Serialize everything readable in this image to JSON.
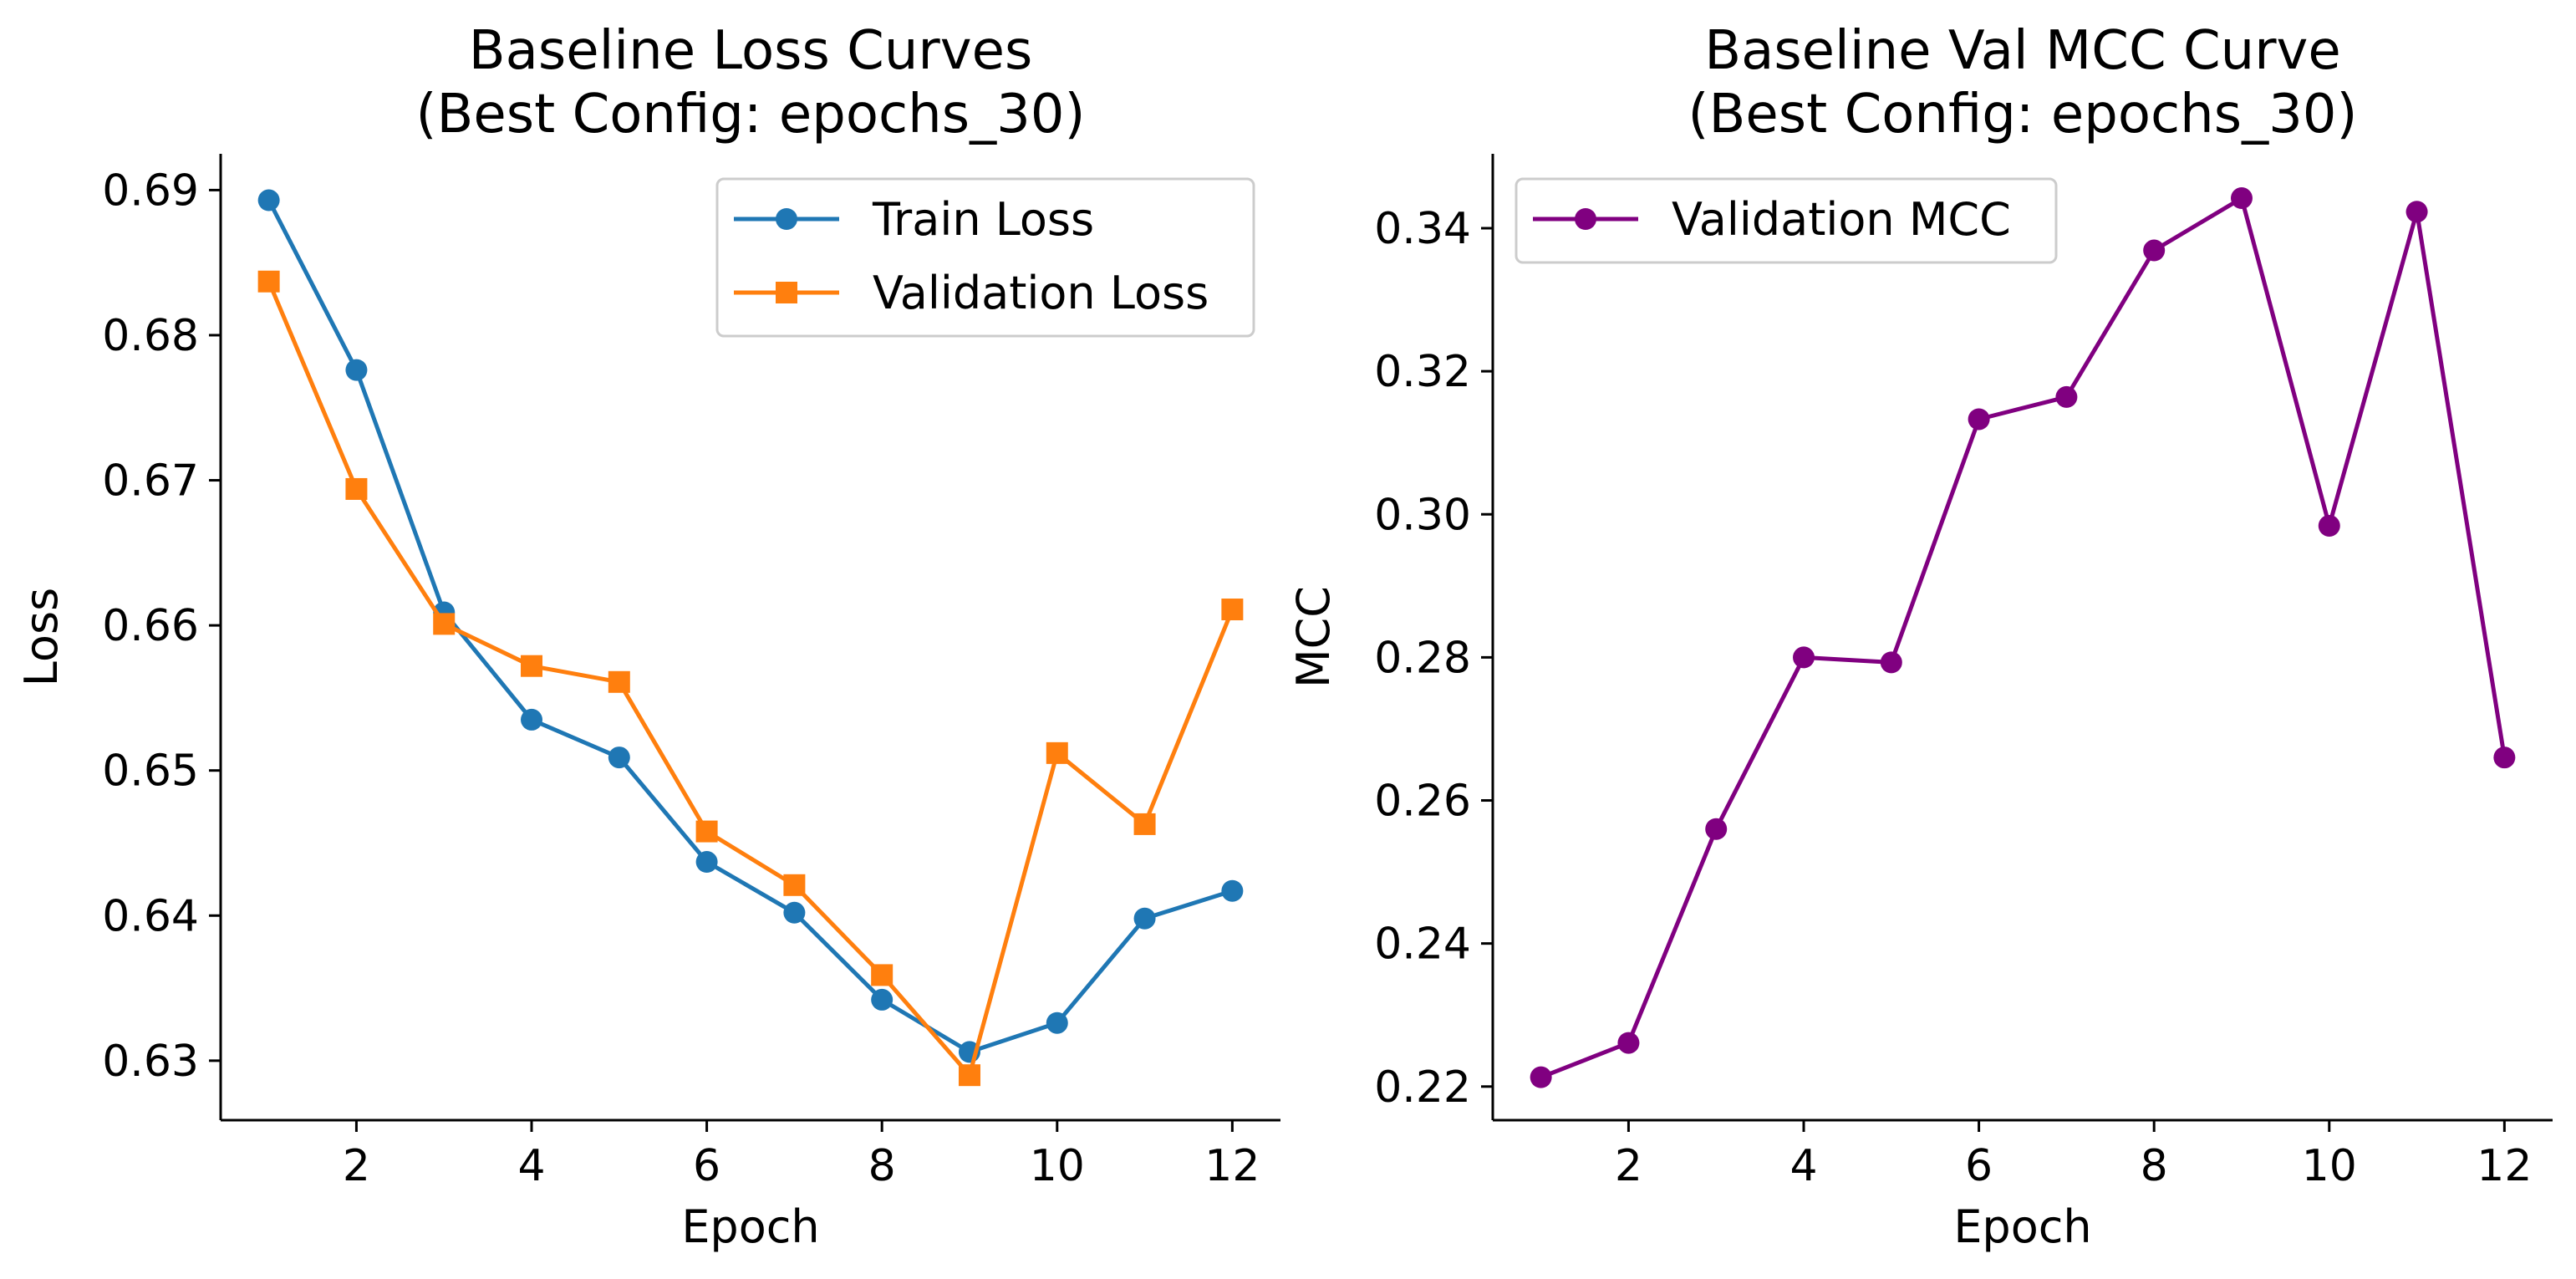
{
  "chart_data": [
    {
      "type": "line",
      "title": [
        "Baseline Loss Curves",
        "(Best Config: epochs_30)"
      ],
      "xlabel": "Epoch",
      "ylabel": "Loss",
      "xlim": [
        0.45,
        12.55
      ],
      "ylim": [
        0.6259,
        0.6925
      ],
      "xticks": [
        2,
        4,
        6,
        8,
        10,
        12
      ],
      "yticks": [
        0.63,
        0.64,
        0.65,
        0.66,
        0.67,
        0.68,
        0.69
      ],
      "ytick_labels": [
        "0.63",
        "0.64",
        "0.65",
        "0.66",
        "0.67",
        "0.68",
        "0.69"
      ],
      "legend_position": "top-right",
      "x": [
        1,
        2,
        3,
        4,
        5,
        6,
        7,
        8,
        9,
        10,
        11,
        12
      ],
      "series": [
        {
          "name": "Train Loss",
          "color": "#1f77b4",
          "marker": "circle",
          "values": [
            0.6893,
            0.6776,
            0.6609,
            0.6535,
            0.6509,
            0.6437,
            0.6402,
            0.6342,
            0.6306,
            0.6326,
            0.6398,
            0.6417
          ]
        },
        {
          "name": "Validation Loss",
          "color": "#ff7f0e",
          "marker": "square",
          "values": [
            0.6837,
            0.6694,
            0.6601,
            0.6572,
            0.6561,
            0.6458,
            0.6421,
            0.6359,
            0.629,
            0.6512,
            0.6463,
            0.6611
          ]
        }
      ]
    },
    {
      "type": "line",
      "title": [
        "Baseline Val MCC Curve",
        "(Best Config: epochs_30)"
      ],
      "xlabel": "Epoch",
      "ylabel": "MCC",
      "xlim": [
        0.45,
        12.55
      ],
      "ylim": [
        0.2153,
        0.3504
      ],
      "xticks": [
        2,
        4,
        6,
        8,
        10,
        12
      ],
      "yticks": [
        0.22,
        0.24,
        0.26,
        0.28,
        0.3,
        0.32,
        0.34
      ],
      "ytick_labels": [
        "0.22",
        "0.24",
        "0.26",
        "0.28",
        "0.30",
        "0.32",
        "0.34"
      ],
      "legend_position": "top-left",
      "x": [
        1,
        2,
        3,
        4,
        5,
        6,
        7,
        8,
        9,
        10,
        11,
        12
      ],
      "series": [
        {
          "name": "Validation MCC",
          "color": "#800080",
          "marker": "circle",
          "values": [
            0.2213,
            0.2261,
            0.256,
            0.28,
            0.2793,
            0.3133,
            0.3164,
            0.3369,
            0.3442,
            0.2984,
            0.3423,
            0.266
          ]
        }
      ]
    }
  ]
}
